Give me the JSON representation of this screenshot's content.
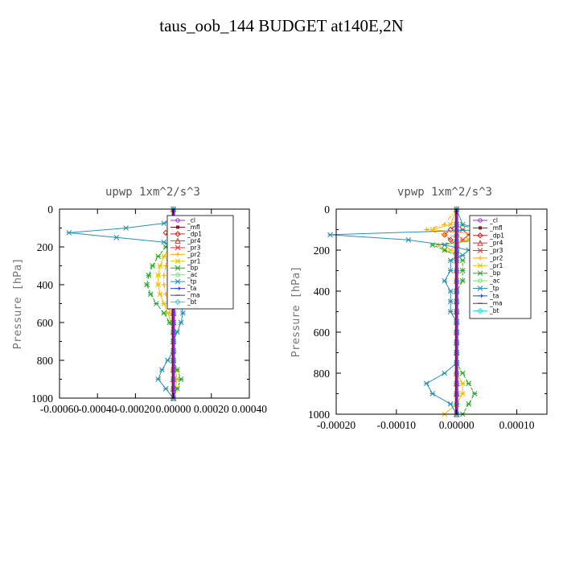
{
  "figure_title": "taus_oob_144  BUDGET at140E,2N",
  "chart_data": [
    {
      "type": "line",
      "title": "upwp   1xm^2/s^3",
      "xlabel": "",
      "ylabel": "Pressure [hPa]",
      "xlim": [
        -0.0006,
        0.0004
      ],
      "ylim": [
        1000,
        0
      ],
      "x_ticks": [
        "-0.00060",
        "-0.00040",
        "-0.00020",
        "0.00000",
        "0.00020",
        "0.00040"
      ],
      "y_ticks": [
        "0",
        "200",
        "400",
        "600",
        "800",
        "1000"
      ],
      "legend_position": "right",
      "y": [
        0,
        50,
        75,
        100,
        125,
        150,
        175,
        200,
        250,
        300,
        350,
        400,
        450,
        500,
        550,
        600,
        650,
        700,
        750,
        800,
        850,
        900,
        950,
        1000
      ],
      "series": [
        {
          "name": "_cl",
          "color": "#9b30d0",
          "values": [
            0,
            0,
            0,
            0,
            0,
            0,
            0,
            0,
            0,
            0,
            0,
            0,
            0,
            0,
            0,
            0,
            0,
            0,
            0,
            0,
            0,
            0,
            0,
            0
          ]
        },
        {
          "name": "_mfl",
          "color": "#8b1a1a",
          "values": [
            0,
            0,
            0,
            0,
            0,
            0,
            0,
            0,
            0,
            0,
            0,
            0,
            0,
            0,
            0,
            0,
            0,
            0,
            0,
            0,
            0,
            0,
            0,
            0
          ]
        },
        {
          "name": "_dp1",
          "color": "#d02020",
          "values": [
            0,
            0,
            0,
            -2e-05,
            -4e-05,
            -2e-05,
            0,
            0,
            0,
            0,
            0,
            0,
            0,
            0,
            0,
            0,
            0,
            0,
            0,
            0,
            0,
            0,
            0,
            0
          ]
        },
        {
          "name": "_pr4",
          "color": "#c04040",
          "values": [
            0,
            0,
            0,
            0,
            0,
            0,
            0,
            0,
            0,
            0,
            0,
            0,
            0,
            0,
            0,
            0,
            0,
            0,
            0,
            0,
            0,
            0,
            0,
            0
          ]
        },
        {
          "name": "_pr3",
          "color": "#ff3030",
          "values": [
            0,
            0,
            2e-05,
            6e-05,
            4e-05,
            2e-05,
            0,
            0,
            0,
            0,
            0,
            0,
            0,
            0,
            0,
            0,
            0,
            0,
            0,
            0,
            0,
            0,
            0,
            0
          ]
        },
        {
          "name": "_pr2",
          "color": "#ffa500",
          "values": [
            0,
            0,
            4e-05,
            0.0001,
            8e-05,
            4e-05,
            0,
            -2e-05,
            -3e-05,
            -4e-05,
            -5e-05,
            -5e-05,
            -4e-05,
            -3e-05,
            -2e-05,
            0,
            0,
            0,
            0,
            0,
            0,
            0,
            0,
            0
          ]
        },
        {
          "name": "_pr1",
          "color": "#f0c000",
          "values": [
            0,
            0,
            3e-05,
            8e-05,
            6e-05,
            3e-05,
            0,
            -2e-05,
            -5e-05,
            -7e-05,
            -8e-05,
            -8e-05,
            -7e-05,
            -5e-05,
            -3e-05,
            -1e-05,
            0,
            0,
            0,
            0,
            1e-05,
            2e-05,
            1e-05,
            0
          ]
        },
        {
          "name": "_bp",
          "color": "#22aa22",
          "values": [
            0,
            0,
            8e-05,
            0.0002,
            0.0003,
            0.00015,
            0,
            -4e-05,
            -8e-05,
            -0.00011,
            -0.00013,
            -0.00014,
            -0.00012,
            -9e-05,
            -5e-05,
            -2e-05,
            0,
            0,
            0,
            0,
            2e-05,
            4e-05,
            2e-05,
            0
          ]
        },
        {
          "name": "_ac",
          "color": "#66ee66",
          "values": [
            0,
            0,
            0,
            0,
            0,
            0,
            0,
            0,
            0,
            0,
            0,
            0,
            0,
            0,
            0,
            0,
            0,
            0,
            0,
            0,
            0,
            0,
            0,
            0
          ]
        },
        {
          "name": "_tp",
          "color": "#2c8fb5",
          "values": [
            0,
            0,
            -5e-05,
            -0.00025,
            -0.00055,
            -0.0003,
            -5e-05,
            0,
            1e-05,
            2e-05,
            3e-05,
            3e-05,
            3e-05,
            4e-05,
            5e-05,
            4e-05,
            2e-05,
            0,
            0,
            -3e-05,
            -6e-05,
            -8e-05,
            -4e-05,
            0
          ]
        },
        {
          "name": "_ta",
          "color": "#2244cc",
          "values": [
            0,
            0,
            0,
            0,
            0,
            0,
            0,
            0,
            0,
            0,
            0,
            0,
            0,
            0,
            0,
            0,
            0,
            0,
            0,
            0,
            0,
            0,
            0,
            0
          ]
        },
        {
          "name": "_ma",
          "color": "#444444",
          "values": [
            0,
            0,
            0,
            0,
            0,
            0,
            0,
            0,
            0,
            0,
            0,
            0,
            0,
            0,
            0,
            0,
            0,
            0,
            0,
            0,
            0,
            0,
            0,
            0
          ]
        },
        {
          "name": "_bt",
          "color": "#22dddd",
          "values": [
            0,
            0,
            0,
            0,
            0,
            0,
            0,
            0,
            0,
            0,
            0,
            0,
            0,
            0,
            0,
            0,
            0,
            0,
            0,
            0,
            0,
            0,
            0,
            0
          ]
        }
      ]
    },
    {
      "type": "line",
      "title": "vpwp   1xm^2/s^3",
      "xlabel": "",
      "ylabel": "Pressure [hPa]",
      "xlim": [
        -0.0002,
        0.00015
      ],
      "ylim": [
        1000,
        0
      ],
      "x_ticks": [
        "-0.00020",
        "-0.00010",
        "0.00000",
        "0.00010"
      ],
      "y_ticks": [
        "0",
        "200",
        "400",
        "600",
        "800",
        "1000"
      ],
      "legend_position": "right",
      "y": [
        0,
        75,
        100,
        125,
        150,
        175,
        200,
        225,
        250,
        300,
        350,
        400,
        450,
        500,
        550,
        600,
        650,
        700,
        750,
        800,
        850,
        900,
        950,
        1000
      ],
      "series": [
        {
          "name": "_cl",
          "color": "#9b30d0",
          "values": [
            0,
            0,
            0,
            0,
            0,
            0,
            0,
            0,
            0,
            0,
            0,
            0,
            0,
            0,
            0,
            0,
            0,
            0,
            0,
            0,
            0,
            0,
            0,
            0
          ]
        },
        {
          "name": "_mfl",
          "color": "#8b1a1a",
          "values": [
            0,
            0,
            0,
            0,
            0,
            0,
            0,
            0,
            0,
            0,
            0,
            0,
            0,
            0,
            0,
            0,
            0,
            0,
            0,
            0,
            0,
            0,
            0,
            0
          ]
        },
        {
          "name": "_dp1",
          "color": "#d02020",
          "values": [
            0,
            0,
            -1e-05,
            -2e-05,
            -1e-05,
            0,
            0,
            0,
            0,
            0,
            0,
            0,
            0,
            0,
            0,
            0,
            0,
            0,
            0,
            0,
            0,
            0,
            0,
            0
          ]
        },
        {
          "name": "_pr4",
          "color": "#c04040",
          "values": [
            0,
            0,
            0,
            0,
            0,
            0,
            0,
            0,
            0,
            0,
            0,
            0,
            0,
            0,
            0,
            0,
            0,
            0,
            0,
            0,
            0,
            0,
            0,
            0
          ]
        },
        {
          "name": "_pr3",
          "color": "#ff3030",
          "values": [
            0,
            0,
            1e-05,
            2e-05,
            1e-05,
            0,
            0,
            0,
            0,
            0,
            0,
            0,
            0,
            0,
            0,
            0,
            0,
            0,
            0,
            0,
            0,
            0,
            0,
            0
          ]
        },
        {
          "name": "_pr2",
          "color": "#ffa500",
          "values": [
            0,
            -2e-05,
            -5e-05,
            -2e-05,
            3e-05,
            -3e-05,
            -2e-05,
            0,
            0,
            0,
            0,
            0,
            0,
            0,
            0,
            0,
            0,
            0,
            0,
            0,
            0,
            0,
            0,
            0
          ]
        },
        {
          "name": "_pr1",
          "color": "#f0c000",
          "values": [
            0,
            -1e-05,
            -4e-05,
            4e-05,
            2e-05,
            -2e-05,
            -1e-05,
            0,
            0,
            0,
            0,
            0,
            0,
            0,
            0,
            0,
            0,
            0,
            0,
            0,
            1e-05,
            1e-05,
            0,
            -2e-05
          ]
        },
        {
          "name": "_bp",
          "color": "#22aa22",
          "values": [
            0,
            0,
            4e-05,
            0.0001,
            4e-05,
            -4e-05,
            -2e-05,
            0,
            1e-05,
            1e-05,
            1e-05,
            0,
            0,
            0,
            0,
            0,
            0,
            0,
            0,
            1e-05,
            2e-05,
            3e-05,
            2e-05,
            1e-05
          ]
        },
        {
          "name": "_ac",
          "color": "#66ee66",
          "values": [
            0,
            0,
            0,
            0,
            0,
            0,
            0,
            0,
            0,
            0,
            0,
            0,
            0,
            0,
            0,
            0,
            0,
            0,
            0,
            0,
            0,
            0,
            0,
            0
          ]
        },
        {
          "name": "_tp",
          "color": "#2c8fb5",
          "values": [
            0,
            1e-05,
            5e-05,
            -0.00021,
            -8e-05,
            -2e-05,
            2e-05,
            1e-05,
            -1e-05,
            -1e-05,
            -2e-05,
            -1e-05,
            -1e-05,
            -1e-05,
            0,
            0,
            0,
            0,
            0,
            -2e-05,
            -5e-05,
            -4e-05,
            -1e-05,
            0
          ]
        },
        {
          "name": "_ta",
          "color": "#2244cc",
          "values": [
            0,
            0,
            0,
            0,
            0,
            0,
            0,
            0,
            0,
            0,
            0,
            0,
            0,
            0,
            0,
            0,
            0,
            0,
            0,
            0,
            0,
            0,
            0,
            0
          ]
        },
        {
          "name": "_ma",
          "color": "#444444",
          "values": [
            0,
            0,
            0,
            0,
            0,
            0,
            0,
            0,
            0,
            0,
            0,
            0,
            0,
            0,
            0,
            0,
            0,
            0,
            0,
            0,
            0,
            0,
            0,
            0
          ]
        },
        {
          "name": "_bt",
          "color": "#22dddd",
          "values": [
            0,
            0,
            0,
            0,
            0,
            0,
            0,
            0,
            0,
            0,
            0,
            0,
            0,
            0,
            0,
            0,
            0,
            0,
            0,
            0,
            0,
            0,
            0,
            0
          ]
        }
      ]
    }
  ]
}
